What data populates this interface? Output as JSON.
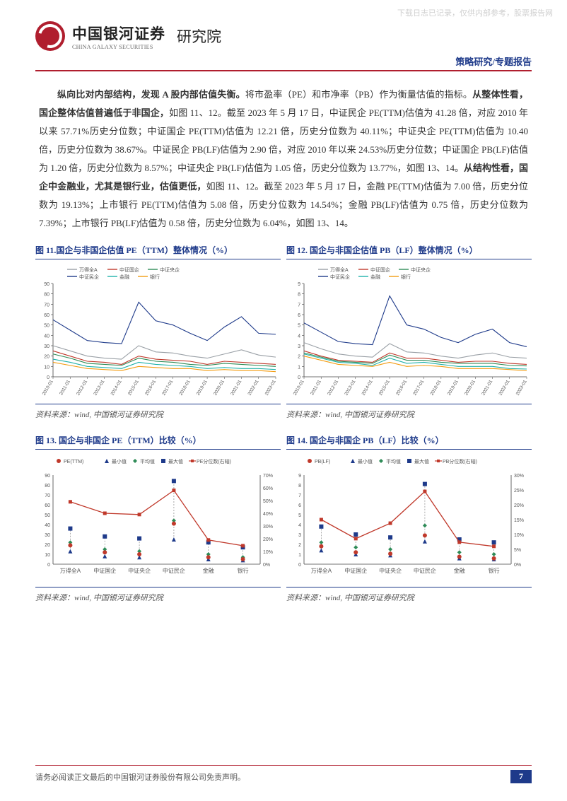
{
  "watermark": "下载日志已记录，仅供内部参考，股票报告网",
  "logo": {
    "cn": "中国银河证券",
    "en": "CHINA GALAXY SECURITIES",
    "suffix": "研究院"
  },
  "category": "策略研究/专题报告",
  "para": {
    "lead": "纵向比对内部结构，发现 A 股内部估值失衡。",
    "t1": "将市盈率（PE）和市净率（PB）作为衡量估值的指标。",
    "bold2": "从整体性看，国企整体估值普遍低于非国企，",
    "t2": "如图 11、12。截至 2023 年 5 月 17 日，中证民企 PE(TTM)估值为 41.28 倍，对应 2010 年以来 57.71%历史分位数；中证国企 PE(TTM)估值为 12.21 倍，历史分位数为 40.11%；中证央企 PE(TTM)估值为 10.40 倍，历史分位数为 38.67%。中证民企 PB(LF)估值为 2.90 倍，对应 2010 年以来 24.53%历史分位数；中证国企 PB(LF)估值为 1.20 倍，历史分位数为 8.57%；中证央企 PB(LF)估值为 1.05 倍，历史分位数为 13.77%，如图 13、14。",
    "bold3": "从结构性看，国企中金融业，尤其是银行业，估值更低，",
    "t3": "如图 11、12。截至 2023 年 5 月 17 日，金融 PE(TTM)估值为 7.00 倍，历史分位数为 19.13%；上市银行 PE(TTM)估值为 5.08 倍，历史分位数为 14.54%；金融 PB(LF)估值为 0.75 倍，历史分位数为 7.39%；上市银行 PB(LF)估值为 0.58 倍，历史分位数为 6.04%，如图 13、14。"
  },
  "charts": {
    "c11": {
      "title": "图 11.国企与非国企估值 PE（TTM）整体情况（%）",
      "type": "line",
      "x_labels": [
        "2010-01",
        "2011-01",
        "2012-01",
        "2013-01",
        "2014-01",
        "2015-01",
        "2016-01",
        "2017-01",
        "2018-01",
        "2019-01",
        "2020-01",
        "2021-01",
        "2022-01",
        "2023-01"
      ],
      "ylim": [
        0,
        90
      ],
      "ytick_step": 10,
      "legend": [
        "万得全A",
        "中证国企",
        "中证央企",
        "中证民企",
        "金融",
        "银行"
      ],
      "colors": [
        "#9aa0a6",
        "#c0392b",
        "#2e8b57",
        "#1e3a8a",
        "#20b2aa",
        "#f39c12"
      ],
      "series": [
        [
          30,
          25,
          20,
          18,
          17,
          30,
          24,
          23,
          20,
          18,
          22,
          26,
          21,
          19
        ],
        [
          25,
          20,
          15,
          14,
          12,
          20,
          17,
          16,
          15,
          12,
          15,
          14,
          13,
          12
        ],
        [
          22,
          18,
          13,
          12,
          11,
          18,
          15,
          14,
          12,
          11,
          13,
          12,
          11,
          10
        ],
        [
          55,
          45,
          35,
          33,
          32,
          72,
          54,
          50,
          42,
          35,
          48,
          58,
          42,
          41
        ],
        [
          17,
          14,
          10,
          9,
          8,
          14,
          12,
          11,
          10,
          8,
          9,
          8,
          8,
          7
        ],
        [
          14,
          11,
          8,
          7,
          6,
          10,
          9,
          8,
          8,
          6,
          7,
          6,
          6,
          5
        ]
      ],
      "background": "#ffffff",
      "axis_color": "#444",
      "grid_color": "#e6e6e6",
      "label_fontsize": 7
    },
    "c12": {
      "title": "图 12. 国企与非国企估值 PB（LF）整体情况（%）",
      "type": "line",
      "x_labels": [
        "2010-01",
        "2011-01",
        "2012-01",
        "2013-01",
        "2014-01",
        "2015-01",
        "2016-01",
        "2017-01",
        "2018-01",
        "2019-01",
        "2020-01",
        "2021-01",
        "2022-01",
        "2023-01"
      ],
      "ylim": [
        0,
        9
      ],
      "ytick_step": 1,
      "legend": [
        "万得全A",
        "中证国企",
        "中证央企",
        "中证民企",
        "金融",
        "银行"
      ],
      "colors": [
        "#9aa0a6",
        "#c0392b",
        "#2e8b57",
        "#1e3a8a",
        "#20b2aa",
        "#f39c12"
      ],
      "series": [
        [
          3.3,
          2.7,
          2.2,
          2.0,
          1.9,
          3.2,
          2.4,
          2.3,
          2.0,
          1.8,
          2.1,
          2.3,
          1.9,
          1.8
        ],
        [
          2.5,
          2.0,
          1.6,
          1.5,
          1.4,
          2.3,
          1.8,
          1.8,
          1.6,
          1.4,
          1.5,
          1.5,
          1.3,
          1.2
        ],
        [
          2.3,
          1.9,
          1.5,
          1.4,
          1.3,
          2.1,
          1.6,
          1.6,
          1.4,
          1.3,
          1.3,
          1.3,
          1.1,
          1.05
        ],
        [
          5.2,
          4.3,
          3.4,
          3.2,
          3.1,
          7.8,
          5.0,
          4.6,
          3.8,
          3.3,
          4.1,
          4.6,
          3.3,
          2.9
        ],
        [
          2.2,
          1.8,
          1.4,
          1.3,
          1.1,
          1.8,
          1.3,
          1.4,
          1.2,
          1.0,
          1.0,
          1.0,
          0.8,
          0.75
        ],
        [
          2.0,
          1.6,
          1.2,
          1.1,
          1.0,
          1.4,
          1.0,
          1.1,
          1.0,
          0.8,
          0.8,
          0.8,
          0.7,
          0.58
        ]
      ],
      "background": "#ffffff",
      "axis_color": "#444",
      "grid_color": "#e6e6e6",
      "label_fontsize": 7
    },
    "c13": {
      "title": "图 13. 国企与非国企 PE（TTM）比较（%）",
      "type": "marker-line",
      "categories": [
        "万得全A",
        "中证国企",
        "中证央企",
        "中证民企",
        "金融",
        "银行"
      ],
      "legend": [
        "PE(TTM)",
        "最小值",
        "平均值",
        "最大值",
        "PE分位数(右轴)"
      ],
      "legend_colors": [
        "#c0392b",
        "#1e3a8a",
        "#2e8b57",
        "#1e3a8a",
        "#c0392b"
      ],
      "legend_markers": [
        "circle",
        "triangle",
        "diamond",
        "square",
        "line"
      ],
      "ylim_left": [
        0,
        90
      ],
      "ytick_left": 10,
      "ylim_right": [
        0,
        70
      ],
      "ytick_right": 10,
      "pe": [
        19,
        12,
        10,
        41,
        7,
        5
      ],
      "min": [
        13,
        8,
        7,
        25,
        5,
        4
      ],
      "avg": [
        22,
        15,
        13,
        44,
        10,
        7
      ],
      "max": [
        36,
        28,
        26,
        84,
        22,
        17
      ],
      "pctile": [
        49,
        40,
        39,
        58,
        19,
        14.5
      ],
      "marker_colors": {
        "pe": "#c0392b",
        "min": "#1e3a8a",
        "avg": "#2e8b57",
        "max": "#1e3a8a",
        "line": "#c0392b"
      },
      "background": "#ffffff",
      "axis_color": "#444",
      "label_fontsize": 8
    },
    "c14": {
      "title": "图 14. 国企与非国企 PB（LF）比较（%）",
      "type": "marker-line",
      "categories": [
        "万得全A",
        "中证国企",
        "中证央企",
        "中证民企",
        "金融",
        "银行"
      ],
      "legend": [
        "PB(LF)",
        "最小值",
        "平均值",
        "最大值",
        "PB分位数(右轴)"
      ],
      "legend_colors": [
        "#c0392b",
        "#1e3a8a",
        "#2e8b57",
        "#1e3a8a",
        "#c0392b"
      ],
      "legend_markers": [
        "circle",
        "triangle",
        "diamond",
        "square",
        "line"
      ],
      "ylim_left": [
        0,
        9
      ],
      "ytick_left": 1,
      "ylim_right": [
        0,
        30
      ],
      "ytick_right": 5,
      "pb": [
        1.8,
        1.2,
        1.05,
        2.9,
        0.75,
        0.58
      ],
      "min": [
        1.4,
        1.0,
        0.9,
        2.3,
        0.6,
        0.5
      ],
      "avg": [
        2.2,
        1.7,
        1.5,
        3.9,
        1.2,
        1.0
      ],
      "max": [
        3.8,
        3.0,
        2.7,
        8.1,
        2.5,
        2.2
      ],
      "pctile": [
        15,
        8.6,
        13.8,
        24.5,
        7.4,
        6.0
      ],
      "marker_colors": {
        "pb": "#c0392b",
        "min": "#1e3a8a",
        "avg": "#2e8b57",
        "max": "#1e3a8a",
        "line": "#c0392b"
      },
      "background": "#ffffff",
      "axis_color": "#444",
      "label_fontsize": 8
    },
    "source": "资料来源：wind, 中国银河证券研究院"
  },
  "footer": {
    "disclaimer": "请务必阅读正文最后的中国银河证券股份有限公司免责声明。",
    "page": "7"
  }
}
